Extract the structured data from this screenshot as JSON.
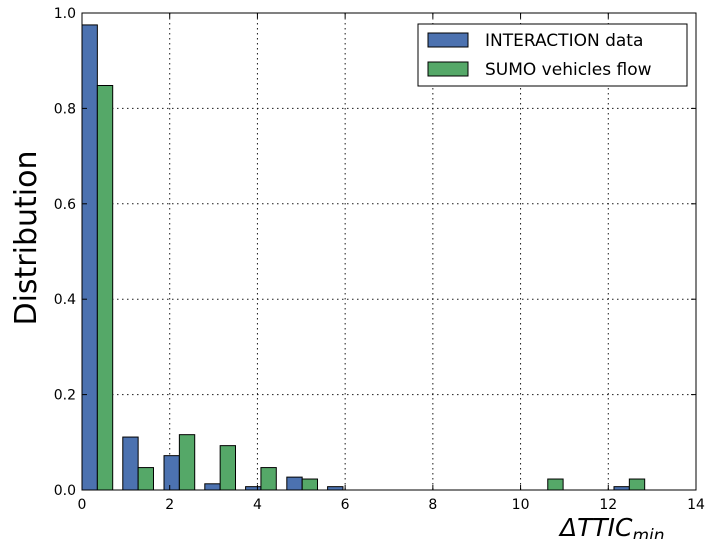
{
  "chart_data": {
    "type": "bar",
    "title": "",
    "xlabel": "ΔTTIC",
    "xlabel_subscript": "min",
    "ylabel": "Distribution",
    "xlim": [
      0,
      14
    ],
    "ylim": [
      0,
      1.0
    ],
    "x_ticks": [
      0,
      2,
      4,
      6,
      8,
      10,
      12,
      14
    ],
    "y_ticks": [
      "0.0",
      "0.2",
      "0.4",
      "0.6",
      "0.8",
      "1.0"
    ],
    "grid": true,
    "legend_position": "top-right",
    "bin_width": 0.7,
    "bin_starts": [
      0,
      0.93,
      1.87,
      2.8,
      3.73,
      4.67,
      5.6,
      6.53,
      7.47,
      8.4,
      9.33,
      10.27,
      11.2,
      12.13,
      13.07
    ],
    "series": [
      {
        "name": "INTERACTION data",
        "color": "#4c72b0",
        "values": [
          0.975,
          0.111,
          0.072,
          0.013,
          0.007,
          0.027,
          0.007,
          0,
          0,
          0,
          0,
          0,
          0,
          0.007,
          0
        ]
      },
      {
        "name": "SUMO vehicles flow",
        "color": "#55a868",
        "values": [
          0.848,
          0.047,
          0.116,
          0.093,
          0.047,
          0.023,
          0,
          0,
          0,
          0,
          0,
          0.023,
          0,
          0.023,
          0
        ]
      }
    ]
  }
}
